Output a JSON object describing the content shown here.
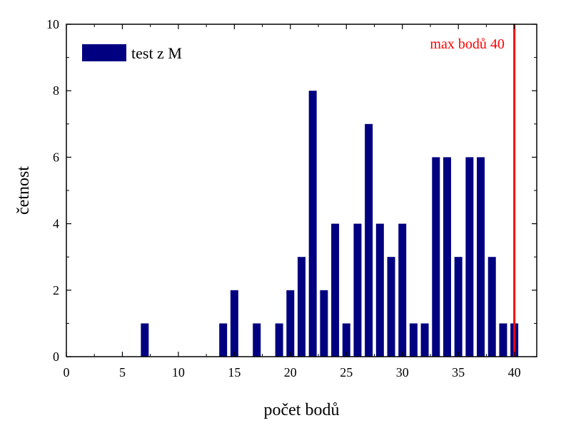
{
  "chart_data": {
    "type": "bar",
    "xlabel": "počet bodů",
    "ylabel": "četnost",
    "xlim": [
      0,
      42
    ],
    "ylim": [
      0,
      10
    ],
    "x_ticks": [
      0,
      5,
      10,
      15,
      20,
      25,
      30,
      35,
      40
    ],
    "y_ticks": [
      0,
      2,
      4,
      6,
      8,
      10
    ],
    "x_minor_ticks": [
      2.5,
      7.5,
      12.5,
      17.5,
      22.5,
      27.5,
      32.5,
      37.5
    ],
    "y_minor_ticks": [
      1,
      3,
      5,
      7,
      9
    ],
    "legend": {
      "position": "top-left",
      "entries": [
        "test z M"
      ]
    },
    "series": [
      {
        "name": "test z M",
        "color": "#000080",
        "x": [
          7,
          14,
          15,
          17,
          19,
          20,
          21,
          22,
          23,
          24,
          25,
          26,
          27,
          28,
          29,
          30,
          31,
          32,
          33,
          34,
          35,
          36,
          37,
          38,
          39,
          40
        ],
        "values": [
          1,
          1,
          2,
          1,
          1,
          2,
          3,
          8,
          2,
          4,
          1,
          4,
          7,
          4,
          3,
          4,
          1,
          1,
          6,
          6,
          3,
          6,
          6,
          3,
          1,
          1
        ]
      }
    ],
    "reference_line": {
      "x": 40,
      "color": "#ff0000",
      "label": "max bodů 40"
    },
    "grid": false
  }
}
